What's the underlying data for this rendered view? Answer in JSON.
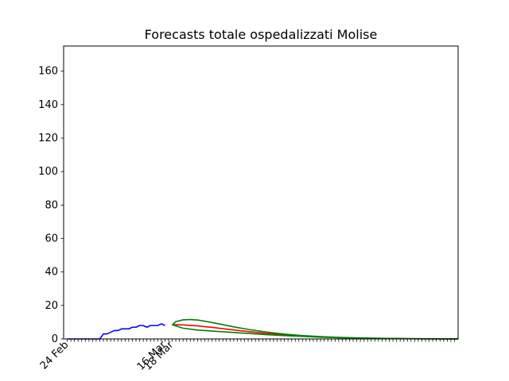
{
  "chart_data": {
    "type": "line",
    "title": "Forecasts totale ospedalizzati Molise",
    "xlabel": "",
    "ylabel": "",
    "x_start_date": "2020-02-24",
    "num_days": 108,
    "xlim": [
      -1,
      108
    ],
    "ylim": [
      0,
      175
    ],
    "yticks": [
      0,
      20,
      40,
      60,
      80,
      100,
      120,
      140,
      160
    ],
    "xtick_labels": [
      {
        "day": 0,
        "label": "24 Feb"
      },
      {
        "day": 27,
        "label": "16 Mar"
      },
      {
        "day": 29,
        "label": "18 Mar"
      }
    ],
    "grid": false,
    "legend": "none",
    "series": [
      {
        "color": "#0000ff",
        "x": [
          0,
          1,
          2,
          3,
          4,
          5,
          6,
          7,
          8,
          9,
          10,
          11,
          12,
          13,
          14,
          15,
          16,
          17,
          18,
          19,
          20,
          21,
          22,
          23,
          24,
          25,
          26,
          27
        ],
        "values": [
          0,
          0,
          0,
          0,
          0,
          0,
          0,
          0,
          0,
          0,
          3,
          3,
          4,
          5,
          5,
          6,
          6,
          6,
          7,
          7,
          8,
          8,
          7,
          8,
          8,
          8,
          9,
          8
        ]
      },
      {
        "color": "#ff0000",
        "x": [
          29,
          32,
          36,
          40,
          45,
          50,
          55,
          60,
          65,
          70,
          75,
          80,
          85,
          90,
          95,
          100,
          105,
          108
        ],
        "values": [
          8.5,
          8.4,
          7.8,
          6.9,
          5.6,
          4.4,
          3.3,
          2.4,
          1.7,
          1.2,
          0.8,
          0.55,
          0.35,
          0.22,
          0.14,
          0.09,
          0.05,
          0.03
        ]
      },
      {
        "color": "#008000",
        "x": [
          29,
          30,
          32,
          34,
          36,
          38,
          40,
          43,
          46,
          50,
          55,
          60,
          65,
          70,
          75,
          80,
          85,
          90,
          95,
          100,
          105,
          108
        ],
        "values": [
          8.5,
          10.3,
          11.4,
          11.6,
          11.3,
          10.6,
          9.8,
          8.5,
          7.2,
          5.7,
          4.1,
          2.9,
          2.0,
          1.4,
          0.95,
          0.63,
          0.42,
          0.27,
          0.17,
          0.11,
          0.07,
          0.05
        ]
      },
      {
        "color": "#008000",
        "x": [
          29,
          32,
          36,
          40,
          45,
          50,
          55,
          60,
          65,
          70,
          75,
          80,
          85,
          90,
          95,
          100,
          105,
          108
        ],
        "values": [
          8.5,
          6.4,
          5.3,
          4.7,
          4.0,
          3.3,
          2.6,
          2.0,
          1.5,
          1.05,
          0.72,
          0.48,
          0.31,
          0.2,
          0.12,
          0.08,
          0.05,
          0.03
        ]
      }
    ]
  }
}
